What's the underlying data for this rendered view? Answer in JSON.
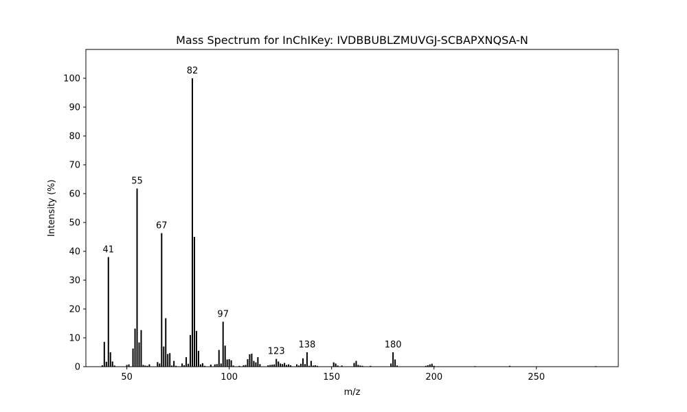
{
  "chart_data": {
    "type": "bar",
    "title": "Mass Spectrum for InChIKey: IVDBBUBLZMUVGJ-SCBAPXNQSA-N",
    "xlabel": "m/z",
    "ylabel": "Intensity (%)",
    "xlim": [
      30,
      290
    ],
    "ylim": [
      0,
      110
    ],
    "xticks": [
      50,
      100,
      150,
      200,
      250
    ],
    "yticks": [
      0,
      10,
      20,
      30,
      40,
      50,
      60,
      70,
      80,
      90,
      100
    ],
    "grid": false,
    "bar_color": "#000000",
    "peaks": [
      {
        "mz": 38,
        "intensity": 0.5
      },
      {
        "mz": 39,
        "intensity": 8.6
      },
      {
        "mz": 40,
        "intensity": 1.7
      },
      {
        "mz": 41,
        "intensity": 38.0,
        "label": "41"
      },
      {
        "mz": 42,
        "intensity": 5.0
      },
      {
        "mz": 43,
        "intensity": 1.8
      },
      {
        "mz": 44,
        "intensity": 0.4
      },
      {
        "mz": 50,
        "intensity": 0.6
      },
      {
        "mz": 51,
        "intensity": 0.8
      },
      {
        "mz": 53,
        "intensity": 6.3
      },
      {
        "mz": 54,
        "intensity": 13.2
      },
      {
        "mz": 55,
        "intensity": 61.8,
        "label": "55"
      },
      {
        "mz": 56,
        "intensity": 8.4
      },
      {
        "mz": 57,
        "intensity": 12.7
      },
      {
        "mz": 58,
        "intensity": 0.6
      },
      {
        "mz": 59,
        "intensity": 0.4
      },
      {
        "mz": 60,
        "intensity": 0.3
      },
      {
        "mz": 61,
        "intensity": 0.8
      },
      {
        "mz": 65,
        "intensity": 1.6
      },
      {
        "mz": 66,
        "intensity": 1.1
      },
      {
        "mz": 67,
        "intensity": 46.3,
        "label": "67"
      },
      {
        "mz": 68,
        "intensity": 7.0
      },
      {
        "mz": 69,
        "intensity": 16.8
      },
      {
        "mz": 70,
        "intensity": 4.4
      },
      {
        "mz": 71,
        "intensity": 4.7
      },
      {
        "mz": 72,
        "intensity": 0.4
      },
      {
        "mz": 73,
        "intensity": 2.0
      },
      {
        "mz": 74,
        "intensity": 0.3
      },
      {
        "mz": 77,
        "intensity": 1.1
      },
      {
        "mz": 78,
        "intensity": 0.5
      },
      {
        "mz": 79,
        "intensity": 3.3
      },
      {
        "mz": 80,
        "intensity": 1.0
      },
      {
        "mz": 81,
        "intensity": 11.0
      },
      {
        "mz": 82,
        "intensity": 100.0,
        "label": "82"
      },
      {
        "mz": 83,
        "intensity": 45.0
      },
      {
        "mz": 84,
        "intensity": 12.4
      },
      {
        "mz": 85,
        "intensity": 5.5
      },
      {
        "mz": 86,
        "intensity": 0.8
      },
      {
        "mz": 87,
        "intensity": 1.2
      },
      {
        "mz": 88,
        "intensity": 0.3
      },
      {
        "mz": 91,
        "intensity": 0.7
      },
      {
        "mz": 93,
        "intensity": 0.8
      },
      {
        "mz": 94,
        "intensity": 0.9
      },
      {
        "mz": 95,
        "intensity": 5.8
      },
      {
        "mz": 96,
        "intensity": 1.1
      },
      {
        "mz": 97,
        "intensity": 15.6,
        "label": "97"
      },
      {
        "mz": 98,
        "intensity": 7.3
      },
      {
        "mz": 99,
        "intensity": 2.5
      },
      {
        "mz": 100,
        "intensity": 2.6
      },
      {
        "mz": 101,
        "intensity": 2.2
      },
      {
        "mz": 102,
        "intensity": 0.4
      },
      {
        "mz": 105,
        "intensity": 0.3
      },
      {
        "mz": 107,
        "intensity": 0.5
      },
      {
        "mz": 108,
        "intensity": 0.6
      },
      {
        "mz": 109,
        "intensity": 2.6
      },
      {
        "mz": 110,
        "intensity": 4.3
      },
      {
        "mz": 111,
        "intensity": 4.5
      },
      {
        "mz": 112,
        "intensity": 2.0
      },
      {
        "mz": 113,
        "intensity": 1.5
      },
      {
        "mz": 114,
        "intensity": 3.3
      },
      {
        "mz": 115,
        "intensity": 0.9
      },
      {
        "mz": 119,
        "intensity": 0.5
      },
      {
        "mz": 120,
        "intensity": 0.6
      },
      {
        "mz": 121,
        "intensity": 0.7
      },
      {
        "mz": 122,
        "intensity": 0.8
      },
      {
        "mz": 123,
        "intensity": 2.7,
        "label": "123"
      },
      {
        "mz": 124,
        "intensity": 1.8
      },
      {
        "mz": 125,
        "intensity": 1.1
      },
      {
        "mz": 126,
        "intensity": 0.9
      },
      {
        "mz": 127,
        "intensity": 1.3
      },
      {
        "mz": 128,
        "intensity": 0.6
      },
      {
        "mz": 129,
        "intensity": 0.8
      },
      {
        "mz": 130,
        "intensity": 0.5
      },
      {
        "mz": 133,
        "intensity": 0.8
      },
      {
        "mz": 134,
        "intensity": 0.4
      },
      {
        "mz": 135,
        "intensity": 1.0
      },
      {
        "mz": 136,
        "intensity": 2.9
      },
      {
        "mz": 137,
        "intensity": 0.9
      },
      {
        "mz": 138,
        "intensity": 5.0,
        "label": "138"
      },
      {
        "mz": 139,
        "intensity": 0.3
      },
      {
        "mz": 140,
        "intensity": 2.0
      },
      {
        "mz": 141,
        "intensity": 0.4
      },
      {
        "mz": 142,
        "intensity": 0.5
      },
      {
        "mz": 143,
        "intensity": 0.3
      },
      {
        "mz": 151,
        "intensity": 1.5
      },
      {
        "mz": 152,
        "intensity": 1.1
      },
      {
        "mz": 153,
        "intensity": 0.4
      },
      {
        "mz": 155,
        "intensity": 0.4
      },
      {
        "mz": 161,
        "intensity": 1.3
      },
      {
        "mz": 162,
        "intensity": 2.0
      },
      {
        "mz": 163,
        "intensity": 0.6
      },
      {
        "mz": 164,
        "intensity": 0.4
      },
      {
        "mz": 165,
        "intensity": 0.3
      },
      {
        "mz": 169,
        "intensity": 0.3
      },
      {
        "mz": 179,
        "intensity": 1.1
      },
      {
        "mz": 180,
        "intensity": 5.0,
        "label": "180"
      },
      {
        "mz": 181,
        "intensity": 2.5
      },
      {
        "mz": 182,
        "intensity": 0.4
      },
      {
        "mz": 196,
        "intensity": 0.3
      },
      {
        "mz": 197,
        "intensity": 0.5
      },
      {
        "mz": 198,
        "intensity": 0.8
      },
      {
        "mz": 199,
        "intensity": 1.0
      },
      {
        "mz": 200,
        "intensity": 0.3
      },
      {
        "mz": 220,
        "intensity": 0.2
      },
      {
        "mz": 237,
        "intensity": 0.3
      },
      {
        "mz": 279,
        "intensity": 0.2
      }
    ]
  }
}
